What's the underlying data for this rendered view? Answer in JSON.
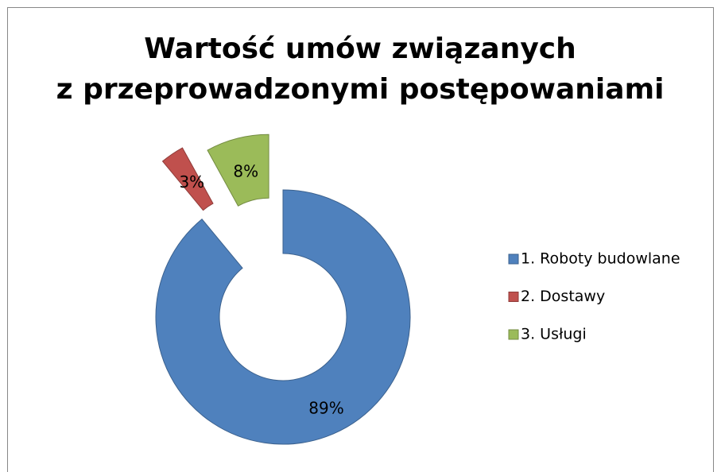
{
  "chart_data": {
    "type": "donut",
    "title": [
      "Wartość umów związanych",
      "z przeprowadzonymi postępowaniami"
    ],
    "categories": [
      "1. Roboty budowlane",
      "2. Dostawy",
      "3. Usługi"
    ],
    "values": [
      89,
      3,
      8
    ],
    "value_labels": [
      "89%",
      "3%",
      "8%"
    ],
    "colors": [
      "#4f81bd",
      "#c0504d",
      "#9bbb59"
    ],
    "legend": "right"
  }
}
